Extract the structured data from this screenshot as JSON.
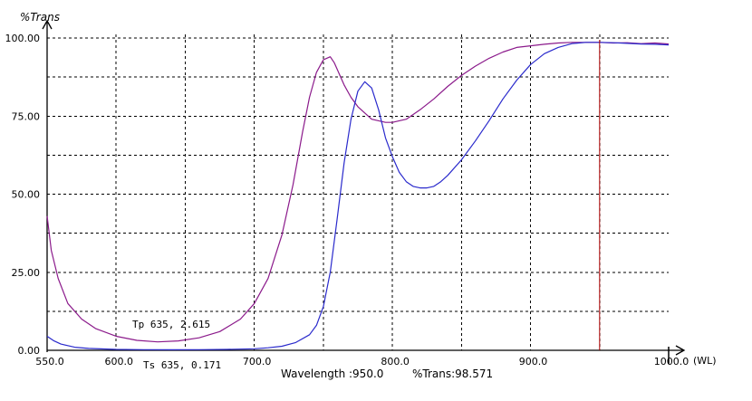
{
  "chart_data": {
    "type": "line",
    "ylabel": "%Trans",
    "xlabel": "(WL)",
    "xlim": [
      550,
      1000
    ],
    "ylim": [
      0,
      100
    ],
    "grid": true,
    "x_ticks": [
      550,
      600,
      700,
      800,
      900,
      1000
    ],
    "x_tick_labels": [
      "550.0",
      "600.0",
      "700.0",
      "800.0",
      "900.0",
      "1000.0"
    ],
    "y_ticks": [
      0,
      25,
      50,
      75,
      100
    ],
    "y_tick_labels": [
      "0.00",
      "25.00",
      "50.00",
      "75.00",
      "100.00"
    ],
    "annotations": [
      {
        "text": "Tp 635, 2.615",
        "x": 635,
        "y": 2.615
      },
      {
        "text": "Ts 635, 0.171",
        "x": 635,
        "y": 0.171
      }
    ],
    "cursor": {
      "wavelength": 950.0,
      "wavelength_label": "Wavelength :950.0",
      "trans_label": "%Trans:98.571",
      "color": "#aa0000"
    },
    "series": [
      {
        "color": "#8b1a8b",
        "x": [
          550,
          553,
          558,
          565,
          575,
          585,
          600,
          615,
          630,
          645,
          660,
          675,
          690,
          700,
          710,
          720,
          728,
          735,
          740,
          745,
          750,
          755,
          758,
          762,
          765,
          770,
          775,
          780,
          785,
          790,
          795,
          800,
          805,
          810,
          815,
          820,
          830,
          840,
          850,
          860,
          870,
          880,
          890,
          900,
          910,
          920,
          930,
          940,
          950,
          960,
          970,
          980,
          990,
          1000
        ],
        "y": [
          43,
          32,
          23,
          15,
          10,
          7,
          4.5,
          3.2,
          2.7,
          3,
          4,
          6,
          10,
          15,
          23,
          37,
          53,
          70,
          81,
          89,
          93,
          94,
          92,
          88,
          85,
          81,
          78,
          76,
          74,
          73.5,
          73,
          73,
          73.5,
          74,
          75.5,
          77,
          80.5,
          84.5,
          88,
          91,
          93.5,
          95.5,
          97,
          97.5,
          98,
          98.4,
          98.6,
          98.6,
          98.6,
          98.4,
          98.5,
          98.2,
          98.4,
          98.1
        ]
      },
      {
        "color": "#2a2acc",
        "x": [
          550,
          555,
          560,
          570,
          580,
          600,
          620,
          640,
          660,
          680,
          700,
          710,
          720,
          730,
          740,
          745,
          750,
          755,
          760,
          765,
          770,
          775,
          780,
          785,
          790,
          795,
          800,
          805,
          810,
          815,
          820,
          825,
          830,
          835,
          840,
          850,
          860,
          870,
          880,
          890,
          900,
          910,
          920,
          930,
          940,
          950,
          960,
          970,
          980,
          990,
          1000
        ],
        "y": [
          4.5,
          3,
          2,
          1,
          0.6,
          0.3,
          0.2,
          0.171,
          0.2,
          0.3,
          0.5,
          0.8,
          1.3,
          2.5,
          5,
          8,
          14,
          25,
          42,
          60,
          74,
          83,
          86,
          84,
          77,
          68,
          62,
          57,
          54,
          52.5,
          52,
          52,
          52.5,
          54,
          56,
          61,
          67,
          73.5,
          80.5,
          86.5,
          91.5,
          95,
          97,
          98.2,
          98.6,
          98.6,
          98.5,
          98.3,
          98.1,
          98,
          97.8
        ]
      }
    ]
  }
}
